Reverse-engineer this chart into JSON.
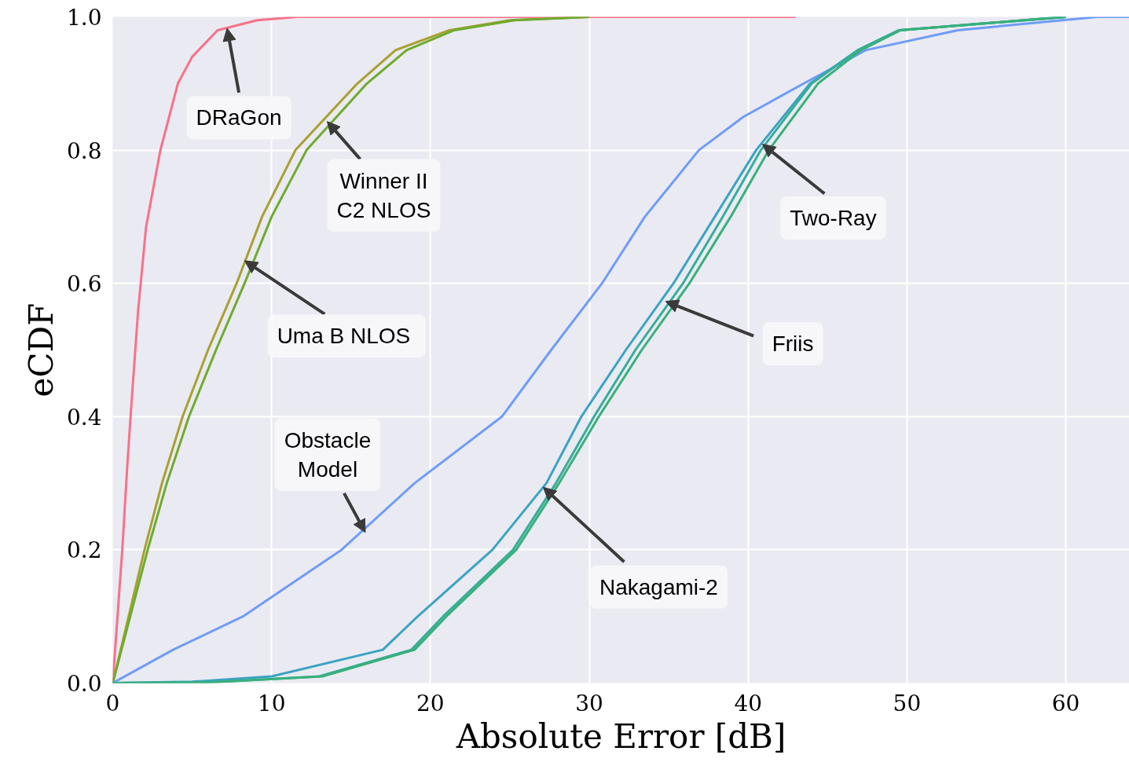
{
  "chart_data": {
    "type": "line",
    "xlabel": "Absolute Error [dB]",
    "ylabel": "eCDF",
    "xlim": [
      0,
      64
    ],
    "ylim": [
      0,
      1
    ],
    "xticks": [
      0,
      10,
      20,
      30,
      40,
      50,
      60
    ],
    "yticks": [
      {
        "value": 0,
        "label": "0.0"
      },
      {
        "value": 0.2,
        "label": "0.2"
      },
      {
        "value": 0.4,
        "label": "0.4"
      },
      {
        "value": 0.6,
        "label": "0.6"
      },
      {
        "value": 0.8,
        "label": "0.8"
      },
      {
        "value": 1,
        "label": "1.0"
      }
    ],
    "grid": true,
    "line_style": "solid",
    "series": [
      {
        "color": "#f77189",
        "x": [
          0,
          0.3,
          0.6,
          0.9,
          1.15,
          1.6,
          2.1,
          3.0,
          4.1,
          5.0,
          6.6,
          9.1,
          11.6,
          43
        ],
        "values": [
          0,
          0.1,
          0.2,
          0.32,
          0.41,
          0.56,
          0.685,
          0.8,
          0.9,
          0.94,
          0.98,
          0.995,
          1.0,
          1.0
        ]
      },
      {
        "color": "#a8a031",
        "x": [
          0,
          2.0,
          3.1,
          4.4,
          6.0,
          7.8,
          9.4,
          11.5,
          15.4,
          17.8,
          21.2,
          25,
          30
        ],
        "values": [
          0,
          0.2,
          0.3,
          0.4,
          0.5,
          0.6,
          0.7,
          0.8,
          0.9,
          0.95,
          0.98,
          0.995,
          1.0
        ]
      },
      {
        "color": "#6eab2e",
        "x": [
          0,
          2.2,
          3.4,
          4.8,
          6.5,
          8.3,
          10.0,
          12.2,
          16.0,
          18.5,
          21.5,
          25.3,
          30
        ],
        "values": [
          0,
          0.2,
          0.3,
          0.4,
          0.5,
          0.6,
          0.7,
          0.8,
          0.9,
          0.95,
          0.98,
          0.995,
          1.0
        ]
      },
      {
        "color": "#6f9cf6",
        "x": [
          0,
          3.8,
          8.2,
          14.4,
          19.0,
          24.5,
          27.6,
          30.8,
          33.5,
          36.9,
          39.7,
          43.5,
          47.4,
          53.2,
          62,
          64
        ],
        "values": [
          0,
          0.05,
          0.1,
          0.2,
          0.3,
          0.4,
          0.5,
          0.6,
          0.7,
          0.8,
          0.85,
          0.9,
          0.95,
          0.98,
          1.0,
          1.0
        ]
      },
      {
        "color": "#3ba3c3",
        "x": [
          0,
          5,
          10,
          17,
          19.2,
          23.9,
          27.3,
          29.5,
          32.3,
          35.3,
          37.9,
          40.5,
          43.9,
          46.9,
          49.5,
          60
        ],
        "values": [
          0,
          0.002,
          0.01,
          0.05,
          0.1,
          0.2,
          0.3,
          0.4,
          0.5,
          0.6,
          0.7,
          0.8,
          0.9,
          0.95,
          0.98,
          1.0
        ]
      },
      {
        "color": "#36ad9a",
        "x": [
          0,
          6,
          13,
          18.8,
          20.8,
          25.2,
          27.9,
          30.3,
          32.9,
          35.9,
          38.4,
          40.8,
          44.0,
          46.9,
          49.5,
          60
        ],
        "values": [
          0,
          0.001,
          0.01,
          0.05,
          0.1,
          0.2,
          0.3,
          0.4,
          0.5,
          0.6,
          0.7,
          0.8,
          0.9,
          0.95,
          0.98,
          1.0
        ]
      },
      {
        "color": "#38b07a",
        "x": [
          0,
          6,
          13.2,
          19.0,
          21.0,
          25.4,
          28.1,
          30.6,
          33.3,
          36.3,
          38.9,
          41.3,
          44.4,
          47.1,
          49.6,
          60
        ],
        "values": [
          0,
          0.001,
          0.01,
          0.05,
          0.1,
          0.2,
          0.3,
          0.4,
          0.5,
          0.6,
          0.7,
          0.8,
          0.9,
          0.95,
          0.98,
          1.0
        ]
      }
    ],
    "annotations": [
      {
        "text": "DRaGon",
        "x": 7.2,
        "y": 0.983
      },
      {
        "text": "Winner II\nC2 NLOS",
        "x": 13.5,
        "y": 0.843
      },
      {
        "text": "Uma B  NLOS",
        "x": 8.3,
        "y": 0.634
      },
      {
        "text": "Obstacle\nModel",
        "x": 15.9,
        "y": 0.226
      },
      {
        "text": "Nakagami-2",
        "x": 27.1,
        "y": 0.294
      },
      {
        "text": "Friis",
        "x": 34.8,
        "y": 0.573
      },
      {
        "text": "Two-Ray",
        "x": 40.9,
        "y": 0.809
      }
    ]
  }
}
